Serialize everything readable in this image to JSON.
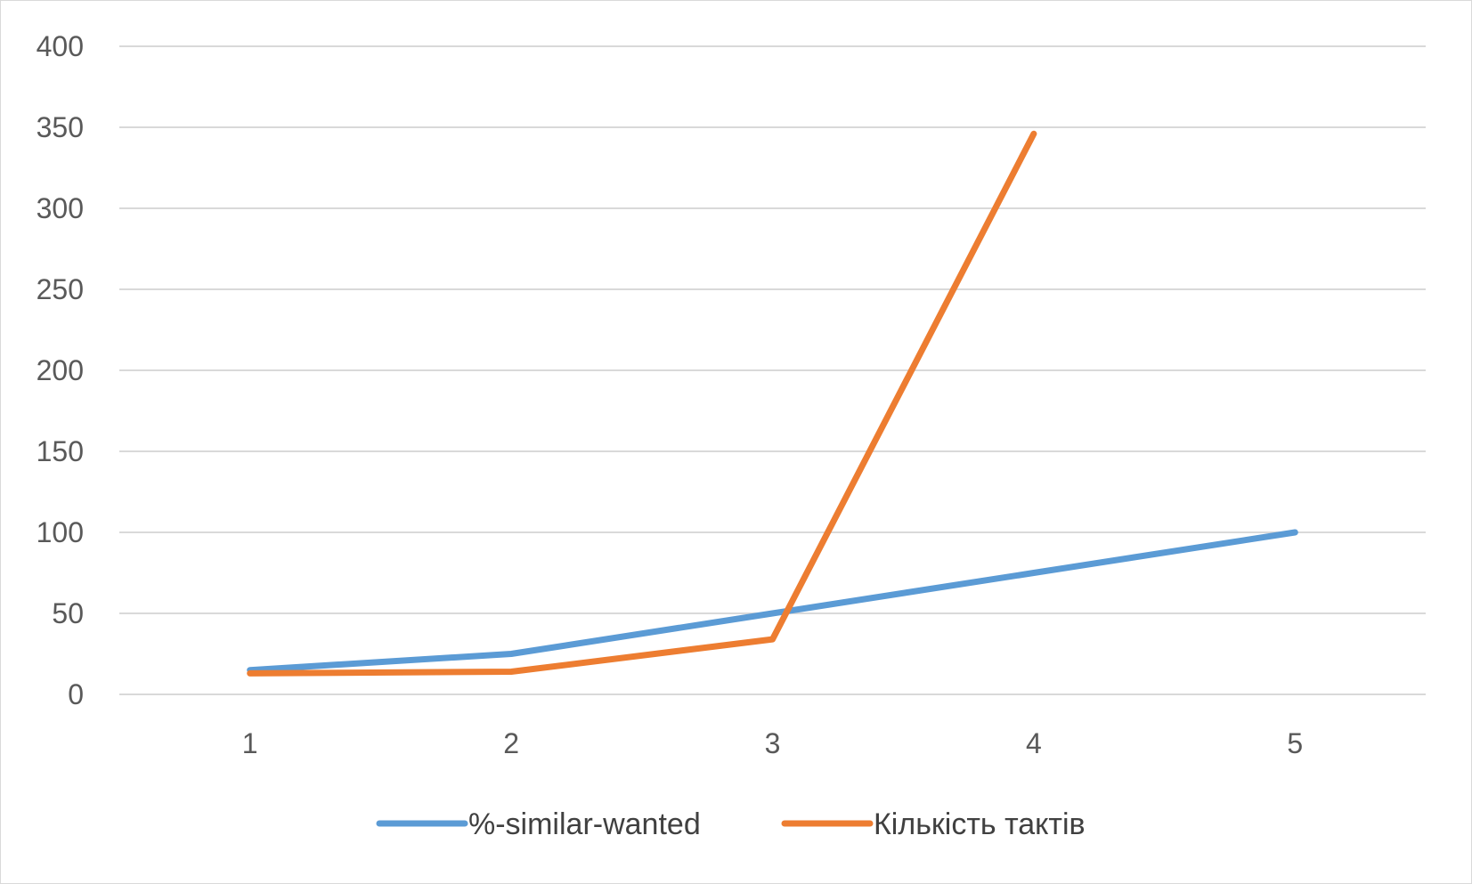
{
  "chart_data": {
    "type": "line",
    "title": "",
    "xlabel": "",
    "ylabel": "",
    "categories": [
      "1",
      "2",
      "3",
      "4",
      "5"
    ],
    "ylim": [
      0,
      400
    ],
    "yticks": [
      0,
      50,
      100,
      150,
      200,
      250,
      300,
      350,
      400
    ],
    "grid": true,
    "legend_position": "bottom",
    "series": [
      {
        "name": "%-similar-wanted",
        "color": "#5b9bd5",
        "values": [
          15,
          25,
          50,
          75,
          100
        ]
      },
      {
        "name": "Кількість тактів",
        "color": "#ed7d31",
        "values": [
          13,
          14,
          34,
          346,
          null
        ]
      }
    ]
  }
}
